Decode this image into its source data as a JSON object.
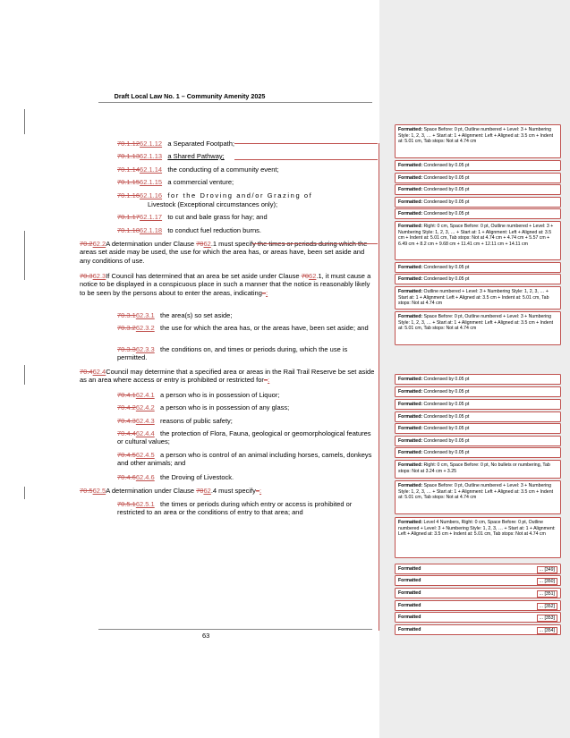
{
  "header": {
    "title": "Draft Local Law No. 1 – Community Amenity 2025"
  },
  "footer": {
    "page_number": "63"
  },
  "body": {
    "p1": {
      "del": "70.1.12",
      "ins": "62.1.12",
      "text": "a Separated Footpath;"
    },
    "p2": {
      "del": "70.1.13",
      "ins": "62.1.13",
      "text": "a Shared Pathway;"
    },
    "p3": {
      "del": "70.1.14",
      "ins": "62.1.14",
      "text": "the conducting of a community event;"
    },
    "p4": {
      "del": "70.1.15",
      "ins": "62.1.15",
      "text": "a commercial venture;"
    },
    "p5": {
      "del": "70.1.16",
      "ins": "62.1.16",
      "line1": "for the Droving and/or Grazing of",
      "line2": "Livestock (Exceptional circumstances only);"
    },
    "p6": {
      "del": "70.1.17",
      "ins": "62.1.17",
      "text": "to cut and bale grass for hay; and"
    },
    "p7": {
      "del": "70.1.18",
      "ins": "62.1.18",
      "text": "to conduct fuel reduction burns."
    },
    "p8": {
      "del": "70.2",
      "ins": "62.2",
      "lead": "A determination under Clause ",
      "cdel": "70",
      "cins": "62",
      "rest": ".1 must specify the times or periods during which the areas set aside may be used, the use for which the area has, or areas have, been set aside and any conditions of use."
    },
    "p9": {
      "del": "70.3",
      "ins": "62.3",
      "lead": "If Council has determined that an area be set aside under Clause ",
      "cdel": "70",
      "cins": "62",
      "rest": ".1, it must cause a notice to be displayed in a conspicuous place in such a manner that the notice is reasonably likely to be seen by the persons about to enter the areas, indicating",
      "tail_del": "–",
      "tail_ins": ":"
    },
    "p10": {
      "del": "70.3.1",
      "ins": "62.3.1",
      "text": "the area(s) so set aside;"
    },
    "p11": {
      "del": "70.3.2",
      "ins": "62.3.2",
      "text": "the use for which the area has, or the areas have, been set aside; and"
    },
    "p12": {
      "del": "70.3.3",
      "ins": "62.3.3",
      "text": "the conditions on, and times or periods during, which the use is permitted."
    },
    "p13": {
      "del": "70.4",
      "ins": "62.4",
      "text": "Council may determine that a specified area or areas in the Rail Trail Reserve be set aside as an area where access or entry is prohibited or restricted for",
      "tail_del": "–",
      "tail_ins": ":"
    },
    "p14": {
      "del": "70.4.1",
      "ins": "62.4.1",
      "text": "a person who is in possession of Liquor;"
    },
    "p15": {
      "del": "70.4.2",
      "ins": "62.4.2",
      "text": "a person who is in possession of any glass;"
    },
    "p16": {
      "del": "70.4.3",
      "ins": "62.4.3",
      "text": "reasons of public safety;"
    },
    "p17": {
      "del": "70.4.4",
      "ins": "62.4.4",
      "text": "the protection of Flora, Fauna, geological or geomorphological features or cultural values;"
    },
    "p18": {
      "del": "70.4.5",
      "ins": "62.4.5",
      "text": "a person who is control of an animal including horses, camels, donkeys and other animals; and"
    },
    "p19": {
      "del": "70.4.6",
      "ins": "62.4.6",
      "text": "the Droving of Livestock."
    },
    "p20": {
      "del": "70.5",
      "ins": "62.5",
      "lead": "A determination under Clause ",
      "cdel": "70",
      "cins": "62",
      "rest": ".4 must specify",
      "tail_del": "–",
      "tail_ins": ":"
    },
    "p21": {
      "del": "70.5.1",
      "ins": "62.5.1",
      "text": "the times or periods during which entry or access is prohibited or restricted to an area or the conditions of entry to that area; and"
    }
  },
  "balloons": [
    {
      "label": "Formatted:",
      "text": "Space Before: 0 pt, Outline numbered + Level: 3 + Numbering Style: 1, 2, 3, … + Start at: 1 + Alignment: Left + Aligned at: 3.5 cm + Indent at: 5.01 cm, Tab stops: Not at 4.74 cm"
    },
    {
      "label": "Formatted:",
      "text": "Condensed by 0.05 pt"
    },
    {
      "label": "Formatted:",
      "text": "Condensed by 0.05 pt"
    },
    {
      "label": "Formatted:",
      "text": "Condensed by 0.05 pt"
    },
    {
      "label": "Formatted:",
      "text": "Condensed by 0.05 pt"
    },
    {
      "label": "Formatted:",
      "text": "Condensed by 0.05 pt"
    },
    {
      "label": "Formatted:",
      "text": "Right: 0 cm, Space Before: 0 pt, Outline numbered + Level: 3 + Numbering Style: 1, 2, 3, … + Start at: 1 + Alignment: Left + Aligned at: 3.5 cm + Indent at: 5.01 cm, Tab stops: Not at 4.74 cm + 4.74 cm + 5.57 cm + 6.49 cm + 8.2 cm + 9.68 cm + 11.41 cm + 12.11 cm + 14.11 cm"
    },
    {
      "label": "Formatted:",
      "text": "Condensed by 0.05 pt"
    },
    {
      "label": "Formatted:",
      "text": "Condensed by 0.05 pt"
    },
    {
      "label": "Formatted:",
      "text": "Outline numbered + Level: 3 + Numbering Style: 1, 2, 3, … + Start at: 1 + Alignment: Left + Aligned at: 3.5 cm + Indent at: 5.01 cm, Tab stops: Not at 4.74 cm"
    },
    {
      "label": "Formatted:",
      "text": "Space Before: 0 pt, Outline numbered + Level: 3 + Numbering Style: 1, 2, 3, … + Start at: 1 + Alignment: Left + Aligned at: 3.5 cm + Indent at: 5.01 cm, Tab stops: Not at 4.74 cm"
    },
    {
      "label": "Formatted:",
      "text": "Condensed by 0.05 pt"
    },
    {
      "label": "Formatted:",
      "text": "Condensed by 0.05 pt"
    },
    {
      "label": "Formatted:",
      "text": "Condensed by 0.05 pt"
    },
    {
      "label": "Formatted:",
      "text": "Condensed by 0.05 pt"
    },
    {
      "label": "Formatted:",
      "text": "Condensed by 0.05 pt"
    },
    {
      "label": "Formatted:",
      "text": "Condensed by 0.05 pt"
    },
    {
      "label": "Formatted:",
      "text": "Condensed by 0.05 pt"
    },
    {
      "label": "Formatted:",
      "text": "Right: 0 cm, Space Before: 0 pt, No bullets or numbering, Tab stops: Not at 3.24 cm + 3.25"
    },
    {
      "label": "Formatted:",
      "text": "Space Before: 0 pt, Outline numbered + Level: 3 + Numbering Style: 1, 2, 3, … + Start at: 1 + Alignment: Left + Aligned at: 3.5 cm + Indent at: 5.01 cm, Tab stops: Not at 4.74 cm"
    },
    {
      "label": "Formatted:",
      "text": "Level 4 Numbers, Right: 0 cm, Space Before: 0 pt, Outline numbered + Level: 3 + Numbering Style: 1, 2, 3, … + Start at: 1 + Alignment: Left + Aligned at: 3.5 cm + Indent at: 5.01 cm, Tab stops: Not at 4.74 cm"
    },
    {
      "label": "Formatted",
      "more": "... [349]"
    },
    {
      "label": "Formatted",
      "more": "... [350]"
    },
    {
      "label": "Formatted",
      "more": "... [351]"
    },
    {
      "label": "Formatted",
      "more": "... [352]"
    },
    {
      "label": "Formatted",
      "more": "... [353]"
    },
    {
      "label": "Formatted",
      "more": "... [354]"
    }
  ]
}
